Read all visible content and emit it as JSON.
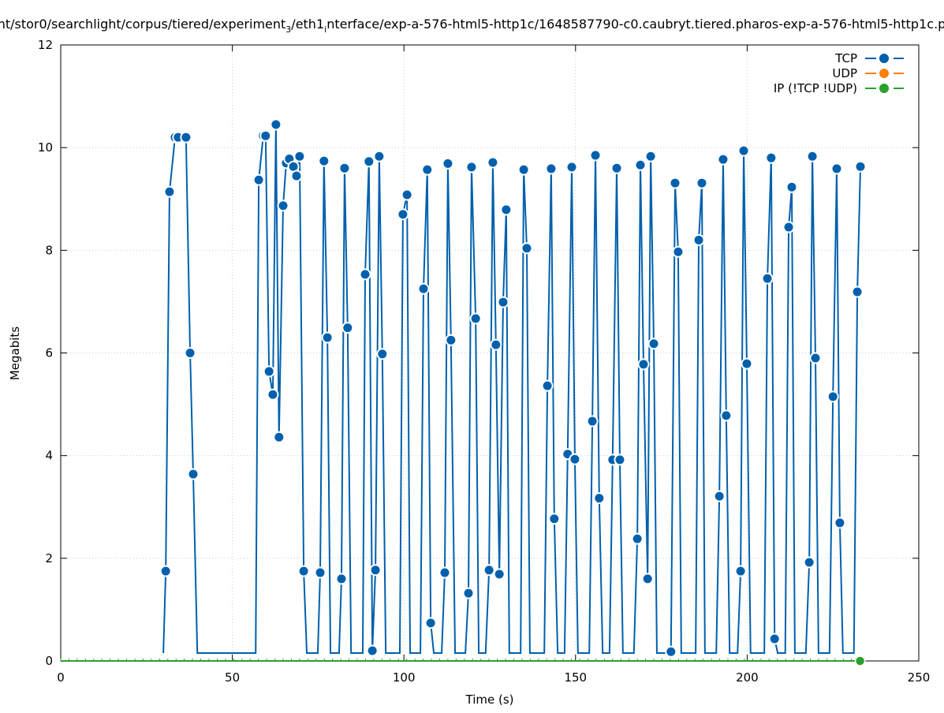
{
  "chart_data": {
    "type": "line",
    "title": "nt/stor0/searchlight/corpus/tiered/experiment_3/eth1_interface/exp-a-576-html5-http1c/1648587790-c0.caubryt.tiered.pharos-exp-a-576-html5-http1c.p",
    "title_parts": [
      "nt/stor0/searchlight/corpus/tiered/experiment",
      "3",
      "/eth1",
      "i",
      "nterface/exp-a-576-html5-http1c/1648587790-c0.caubryt.tiered.pharos-exp-a-576-html5-http1c.p"
    ],
    "xlabel": "Time (s)",
    "ylabel": "Megabits",
    "xlim": [
      0,
      250
    ],
    "ylim": [
      0,
      12
    ],
    "xticks": [
      "0",
      "50",
      "100",
      "150",
      "200",
      "250"
    ],
    "yticks": [
      "0",
      "2",
      "4",
      "6",
      "8",
      "10",
      "12"
    ],
    "grid": true,
    "legend_position": "top-right",
    "series": [
      {
        "name": "TCP",
        "color": "#0060ad",
        "x": [
          29.9,
          30.6,
          31.7,
          33.3,
          34.2,
          36.5,
          37.7,
          38.6,
          39.8,
          56.8,
          57.7,
          59.0,
          59.7,
          60.7,
          61.8,
          62.7,
          63.6,
          64.8,
          65.7,
          66.6,
          67.8,
          68.7,
          69.6,
          70.8,
          71.7,
          74.9,
          75.6,
          76.7,
          77.7,
          78.6,
          81.1,
          81.8,
          82.7,
          83.6,
          84.6,
          88.0,
          88.7,
          89.8,
          90.8,
          91.7,
          92.8,
          93.7,
          94.7,
          98.8,
          99.7,
          100.9,
          101.8,
          104.8,
          105.7,
          106.8,
          107.8,
          108.7,
          111.0,
          111.9,
          112.8,
          113.7,
          114.9,
          117.9,
          118.8,
          119.7,
          120.9,
          121.8,
          123.8,
          124.8,
          125.9,
          126.8,
          127.8,
          128.9,
          129.8,
          130.7,
          134.0,
          134.9,
          135.8,
          136.7,
          140.9,
          141.8,
          142.9,
          143.8,
          144.8,
          146.8,
          147.7,
          148.9,
          149.8,
          150.7,
          154.0,
          154.9,
          155.8,
          156.9,
          157.9,
          159.9,
          160.8,
          162.0,
          162.9,
          163.8,
          167.0,
          168.0,
          168.9,
          169.8,
          171.0,
          171.9,
          172.8,
          173.7,
          176.9,
          177.8,
          179.0,
          179.9,
          180.8,
          185.0,
          185.9,
          186.8,
          187.7,
          191.0,
          191.9,
          193.0,
          193.9,
          194.9,
          197.2,
          198.1,
          199.0,
          199.9,
          201.0,
          205.0,
          205.9,
          207.0,
          208.0,
          208.9,
          211.1,
          212.1,
          213.0,
          213.9,
          217.1,
          218.1,
          219.0,
          219.9,
          220.8,
          224.0,
          225.0,
          226.1,
          227.0,
          227.9,
          231.1,
          232.1,
          233.0
        ],
        "y": [
          0,
          1.75,
          9.14,
          10.2,
          10.2,
          10.2,
          6.0,
          3.64,
          0,
          0,
          9.37,
          10.23,
          10.23,
          5.64,
          5.19,
          10.45,
          4.36,
          8.87,
          9.7,
          9.78,
          9.63,
          9.45,
          9.83,
          1.75,
          0,
          0,
          1.72,
          9.74,
          6.3,
          0,
          0,
          1.6,
          9.6,
          6.49,
          0,
          0,
          7.53,
          9.73,
          0.2,
          1.77,
          9.83,
          5.98,
          0,
          0,
          8.7,
          9.08,
          0,
          0,
          7.25,
          9.57,
          0.74,
          0,
          0,
          1.72,
          9.69,
          6.25,
          0,
          0,
          1.32,
          9.62,
          6.67,
          0,
          0,
          1.77,
          9.71,
          6.16,
          1.69,
          6.99,
          8.79,
          0,
          0,
          9.57,
          8.04,
          0,
          0,
          5.36,
          9.59,
          2.77,
          0,
          0,
          4.03,
          9.62,
          3.93,
          0,
          0,
          4.67,
          9.85,
          3.17,
          0,
          0,
          3.92,
          9.6,
          3.92,
          0,
          0,
          2.38,
          9.66,
          5.78,
          1.6,
          9.83,
          6.18,
          0,
          0,
          0.18,
          9.31,
          7.97,
          0,
          0,
          8.2,
          9.31,
          0,
          0,
          3.21,
          9.77,
          4.78,
          0,
          0,
          1.75,
          9.94,
          5.79,
          0,
          0,
          7.45,
          9.8,
          0.43,
          0,
          0,
          8.45,
          9.23,
          0,
          0,
          1.92,
          9.83,
          5.9,
          0,
          0,
          5.15,
          9.59,
          2.69,
          0,
          0,
          7.19,
          9.63
        ]
      },
      {
        "name": "UDP",
        "color": "#ff7f0e",
        "x": [],
        "y": []
      },
      {
        "name": "IP (!TCP  !UDP)",
        "color": "#2ca02c",
        "x": [
          0,
          232.9
        ],
        "y": [
          0,
          0
        ]
      }
    ]
  }
}
